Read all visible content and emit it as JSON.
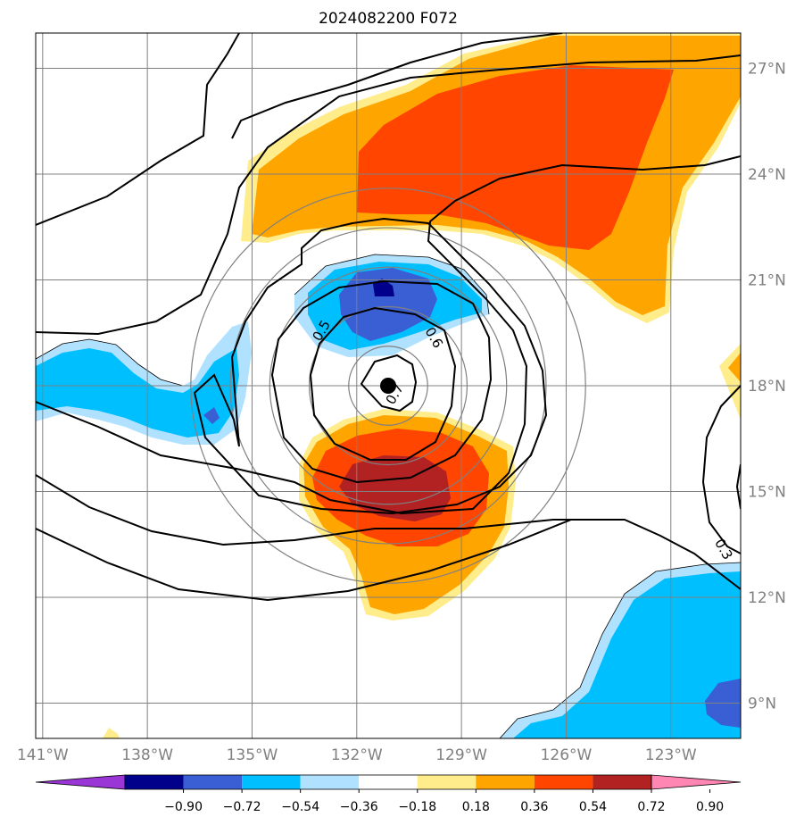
{
  "chart_data": {
    "type": "contour",
    "title": "2024082200 F072",
    "x_axis": {
      "tick_labels": [
        "141°W",
        "138°W",
        "135°W",
        "132°W",
        "129°W",
        "126°W",
        "123°W"
      ],
      "tick_values": [
        -141,
        -138,
        -135,
        -132,
        -129,
        -126,
        -123
      ],
      "range": [
        -141,
        -121
      ]
    },
    "y_axis": {
      "tick_labels": [
        "9°N",
        "12°N",
        "15°N",
        "18°N",
        "21°N",
        "24°N",
        "27°N"
      ],
      "tick_values": [
        9,
        12,
        15,
        18,
        21,
        24,
        27
      ],
      "range": [
        8,
        28
      ]
    },
    "grid": true,
    "center_marker": {
      "lon": -131.3,
      "lat": 18.0
    },
    "range_rings_deg": [
      1,
      2,
      3,
      4,
      5
    ],
    "contour_labels": [
      {
        "text": "0.5",
        "lon": -132.9,
        "lat": 19.5
      },
      {
        "text": "0.6",
        "lon": -129.9,
        "lat": 19.3
      },
      {
        "text": "0.7",
        "lon": -130.8,
        "lat": 17.7
      },
      {
        "text": "0.3",
        "lon": -121.6,
        "lat": 13.3
      }
    ],
    "colorbar": {
      "levels": [
        "−0.90",
        "−0.72",
        "−0.54",
        "−0.36",
        "−0.18",
        "0.18",
        "0.36",
        "0.54",
        "0.72",
        "0.90"
      ],
      "colors": [
        "#9a35d6",
        "#00008b",
        "#3a5fd4",
        "#00bfff",
        "#b0e2ff",
        "#ffffff",
        "#ffec8b",
        "#ffa500",
        "#ff4500",
        "#b22222",
        "#ff85b3"
      ],
      "extend": "both"
    }
  },
  "colors": {
    "grid": "#808080",
    "ring": "#808080",
    "contour": "#000000"
  }
}
